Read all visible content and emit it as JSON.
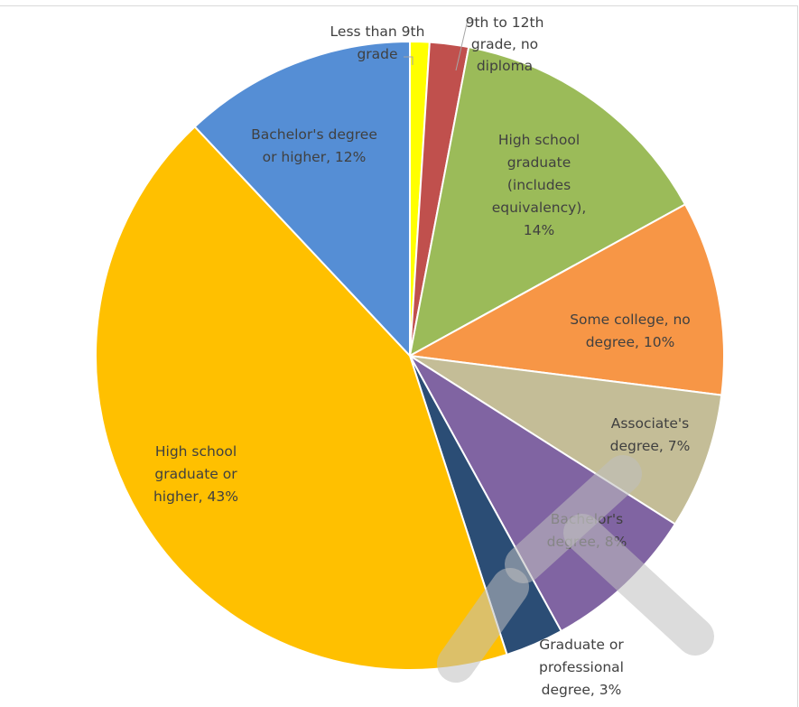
{
  "chart_data": {
    "type": "pie",
    "title": "",
    "slices": [
      {
        "label": "Less than 9th grade",
        "value": 1,
        "color": "#FFFF00",
        "label_lines": [
          "Less than 9th",
          "grade"
        ],
        "label_color": "#404040"
      },
      {
        "label": "9th to 12th grade, no diploma",
        "value": 2,
        "color": "#C0504D",
        "label_lines": [
          "9th to 12th",
          "grade, no",
          "diploma"
        ],
        "label_color": "#404040"
      },
      {
        "label": "High school graduate (includes equivalency)",
        "value": 14,
        "color": "#9BBB59",
        "label_lines": [
          "High school",
          "graduate",
          "(includes",
          "equivalency),",
          "14%"
        ],
        "label_color": "#404040"
      },
      {
        "label": "Some college, no degree",
        "value": 10,
        "color": "#F79646",
        "label_lines": [
          "Some college, no",
          "degree, 10%"
        ],
        "label_color": "#404040"
      },
      {
        "label": "Associate's degree",
        "value": 7,
        "color": "#C4BD97",
        "label_lines": [
          "Associate's",
          "degree, 7%"
        ],
        "label_color": "#404040"
      },
      {
        "label": "Bachelor's degree",
        "value": 8,
        "color": "#8064A2",
        "label_lines": [
          "Bachelor's",
          "degree, 8%"
        ],
        "label_color": "#404040"
      },
      {
        "label": "Graduate or professional degree",
        "value": 3,
        "color": "#2B4D75",
        "label_lines": [
          "Graduate or",
          "professional",
          "degree, 3%"
        ],
        "label_color": "#404040"
      },
      {
        "label": "High school graduate or higher",
        "value": 43,
        "color": "#FFC000",
        "label_lines": [
          "High school",
          "graduate or",
          "higher, 43%"
        ],
        "label_color": "#404040"
      },
      {
        "label": "Bachelor's degree or higher",
        "value": 12,
        "color": "#558ED5",
        "label_lines": [
          "Bachelor's degree",
          "or higher, 12%"
        ],
        "label_color": "#404040"
      }
    ],
    "legend": "none",
    "watermark_color": "#BFBFBF"
  }
}
